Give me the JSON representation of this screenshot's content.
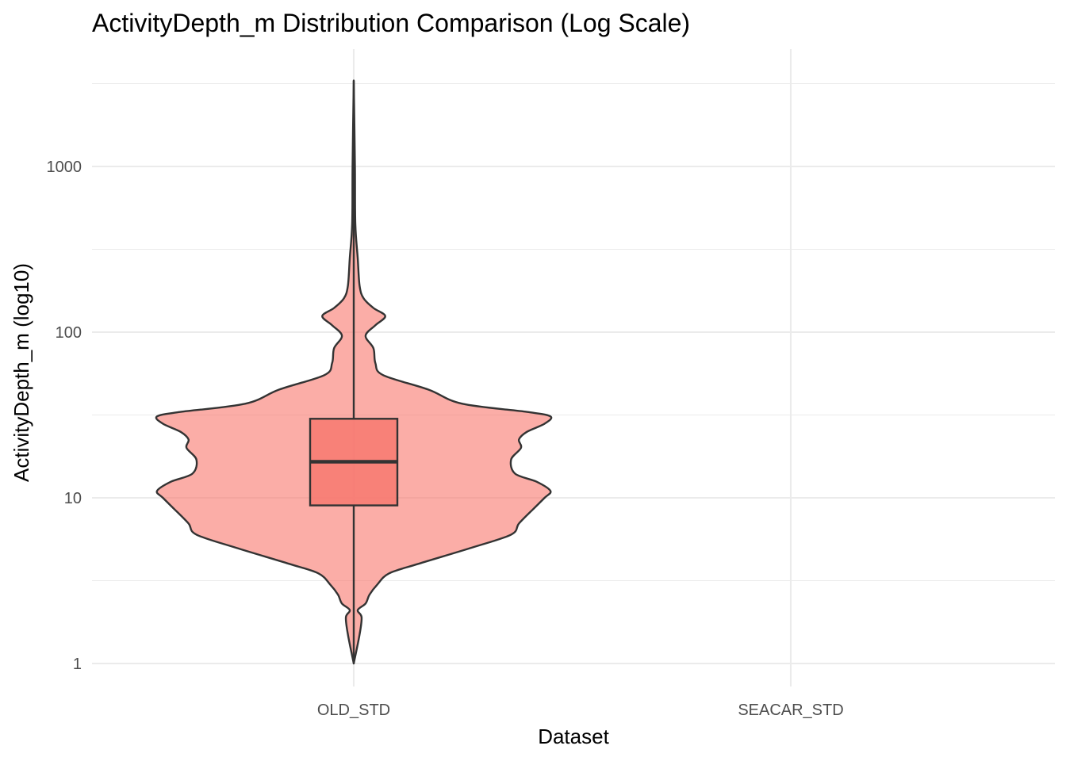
{
  "chart_data": {
    "type": "violin",
    "title": "ActivityDepth_m Distribution Comparison (Log Scale)",
    "xlabel": "Dataset",
    "ylabel": "ActivityDepth_m (log10)",
    "y_scale": "log10",
    "ylim": [
      0.8,
      4000
    ],
    "y_ticks": [
      1,
      10,
      100,
      1000
    ],
    "y_tick_labels": [
      "1",
      "10",
      "100",
      "1000"
    ],
    "categories": [
      "OLD_STD",
      "SEACAR_STD"
    ],
    "grid": true,
    "legend": "none",
    "series": [
      {
        "category": "OLD_STD",
        "fill": "#F8766D",
        "violin_profile": [
          [
            1.0,
            0.0
          ],
          [
            1.5,
            0.03
          ],
          [
            1.9,
            0.04
          ],
          [
            2.1,
            0.02
          ],
          [
            2.3,
            0.06
          ],
          [
            2.6,
            0.08
          ],
          [
            3.0,
            0.12
          ],
          [
            3.5,
            0.18
          ],
          [
            4.0,
            0.33
          ],
          [
            5.0,
            0.6
          ],
          [
            6.0,
            0.8
          ],
          [
            7.0,
            0.84
          ],
          [
            8.5,
            0.91
          ],
          [
            10.0,
            0.97
          ],
          [
            11.0,
            1.0
          ],
          [
            12.5,
            0.93
          ],
          [
            14.0,
            0.82
          ],
          [
            17.0,
            0.8
          ],
          [
            20.0,
            0.85
          ],
          [
            22.5,
            0.84
          ],
          [
            25.0,
            0.88
          ],
          [
            28.0,
            0.97
          ],
          [
            31.0,
            1.0
          ],
          [
            33.0,
            0.88
          ],
          [
            37.0,
            0.55
          ],
          [
            45.0,
            0.38
          ],
          [
            55.0,
            0.15
          ],
          [
            65.0,
            0.11
          ],
          [
            80.0,
            0.1
          ],
          [
            95.0,
            0.06
          ],
          [
            110.0,
            0.11
          ],
          [
            125.0,
            0.16
          ],
          [
            140.0,
            0.1
          ],
          [
            160.0,
            0.05
          ],
          [
            190.0,
            0.03
          ],
          [
            280.0,
            0.02
          ],
          [
            450.0,
            0.008
          ],
          [
            1000.0,
            0.006
          ],
          [
            3300.0,
            0.0
          ]
        ],
        "box": {
          "min": 1,
          "q1": 9,
          "median": 16.5,
          "q3": 30,
          "max": 3300
        }
      },
      {
        "category": "SEACAR_STD",
        "fill": "#00BFC4",
        "violin_profile": [],
        "box": null
      }
    ]
  }
}
